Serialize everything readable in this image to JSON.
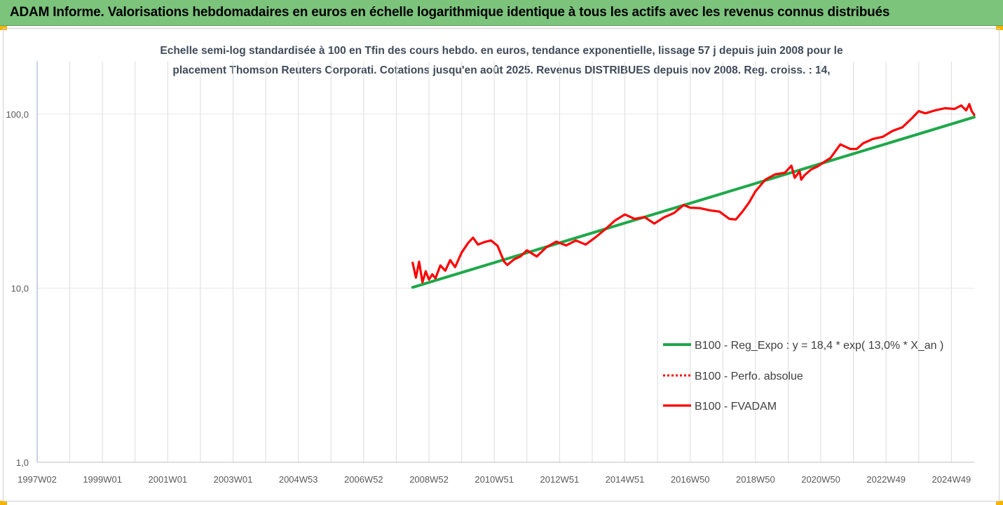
{
  "header": {
    "title": "ADAM Informe. Valorisations hebdomadaires en euros en échelle logarithmique identique à tous les actifs avec les revenus connus distribués"
  },
  "chart_data": {
    "type": "line",
    "title_line1": "Echelle semi-log standardisée à 100 en Tfin des cours hebdo. en euros, tendance exponentielle, lissage 57 j depuis juin 2008 pour le",
    "title_line2": "placement Thomson Reuters Corporati. Cotations jusqu'en août 2025. Revenus DISTRIBUES depuis nov 2008. Reg. croiss. : 14,",
    "y_scale": "log",
    "ylim": [
      1,
      200
    ],
    "y_ticks": [
      {
        "value": 1,
        "label": "1,0"
      },
      {
        "value": 10,
        "label": "10,0"
      },
      {
        "value": 100,
        "label": "100,0"
      }
    ],
    "x_range": [
      1997.0,
      2025.7
    ],
    "x_tick_labels": [
      {
        "label": "1997W02",
        "x": 1997.0
      },
      {
        "label": "1999W01",
        "x": 1999.0
      },
      {
        "label": "2001W01",
        "x": 2001.0
      },
      {
        "label": "2003W01",
        "x": 2003.0
      },
      {
        "label": "2004W53",
        "x": 2005.0
      },
      {
        "label": "2006W52",
        "x": 2007.0
      },
      {
        "label": "2008W52",
        "x": 2009.0
      },
      {
        "label": "2010W51",
        "x": 2011.0
      },
      {
        "label": "2012W51",
        "x": 2013.0
      },
      {
        "label": "2014W51",
        "x": 2015.0
      },
      {
        "label": "2016W50",
        "x": 2017.0
      },
      {
        "label": "2018W50",
        "x": 2019.0
      },
      {
        "label": "2020W50",
        "x": 2021.0
      },
      {
        "label": "2022W49",
        "x": 2023.0
      },
      {
        "label": "2024W49",
        "x": 2025.0
      }
    ],
    "grid": "vertical",
    "legend_position": "right",
    "series": [
      {
        "name": "B100 - Reg_Expo : y = 18,4 * exp( 13,0% *  X_an )",
        "color": "#1ea84a",
        "style": "solid",
        "x": [
          2008.5,
          2025.7
        ],
        "y": [
          10.1,
          96
        ]
      },
      {
        "name": "B100 - Perfo. absolue",
        "color": "#ff0000",
        "style": "dotted",
        "x": [],
        "y": []
      },
      {
        "name": "B100 - FVADAM",
        "color": "#ff0000",
        "style": "solid",
        "x": [
          2008.5,
          2008.6,
          2008.7,
          2008.8,
          2008.9,
          2009.0,
          2009.1,
          2009.2,
          2009.35,
          2009.5,
          2009.65,
          2009.8,
          2010.0,
          2010.2,
          2010.35,
          2010.5,
          2010.7,
          2010.9,
          2011.1,
          2011.3,
          2011.4,
          2011.6,
          2011.8,
          2012.0,
          2012.3,
          2012.6,
          2012.9,
          2013.2,
          2013.5,
          2013.8,
          2014.1,
          2014.4,
          2014.7,
          2015.0,
          2015.3,
          2015.6,
          2015.9,
          2016.2,
          2016.5,
          2016.8,
          2017.0,
          2017.3,
          2017.6,
          2017.9,
          2018.2,
          2018.4,
          2018.6,
          2018.8,
          2019.0,
          2019.3,
          2019.6,
          2019.9,
          2020.1,
          2020.2,
          2020.3,
          2020.35,
          2020.4,
          2020.5,
          2020.7,
          2020.9,
          2021.1,
          2021.3,
          2021.6,
          2021.9,
          2022.1,
          2022.3,
          2022.6,
          2022.9,
          2023.2,
          2023.5,
          2023.8,
          2024.0,
          2024.2,
          2024.5,
          2024.8,
          2025.1,
          2025.3,
          2025.45,
          2025.55,
          2025.62,
          2025.7
        ],
        "y": [
          14.0,
          11.5,
          14.2,
          10.8,
          12.5,
          11.2,
          12.0,
          11.4,
          13.5,
          12.6,
          14.5,
          13.2,
          16.0,
          18.2,
          19.5,
          17.8,
          18.4,
          18.8,
          17.5,
          14.2,
          13.6,
          14.6,
          15.2,
          16.5,
          15.2,
          17.2,
          18.5,
          17.6,
          18.8,
          17.8,
          19.6,
          21.8,
          24.5,
          26.5,
          25.0,
          25.6,
          23.5,
          25.5,
          27.0,
          30.0,
          29.0,
          28.8,
          28.0,
          27.5,
          25.0,
          24.8,
          27.5,
          31.0,
          36.0,
          42.0,
          45.0,
          46.0,
          50.5,
          43.0,
          45.5,
          47.0,
          42.0,
          44.5,
          48.0,
          50.0,
          53.0,
          56.0,
          67.0,
          63.0,
          63.0,
          68.0,
          72.0,
          74.0,
          80.0,
          84.0,
          95.0,
          104.0,
          101.0,
          105.0,
          108.0,
          107.0,
          112.0,
          105.0,
          114.0,
          104.0,
          99.0
        ]
      }
    ]
  }
}
